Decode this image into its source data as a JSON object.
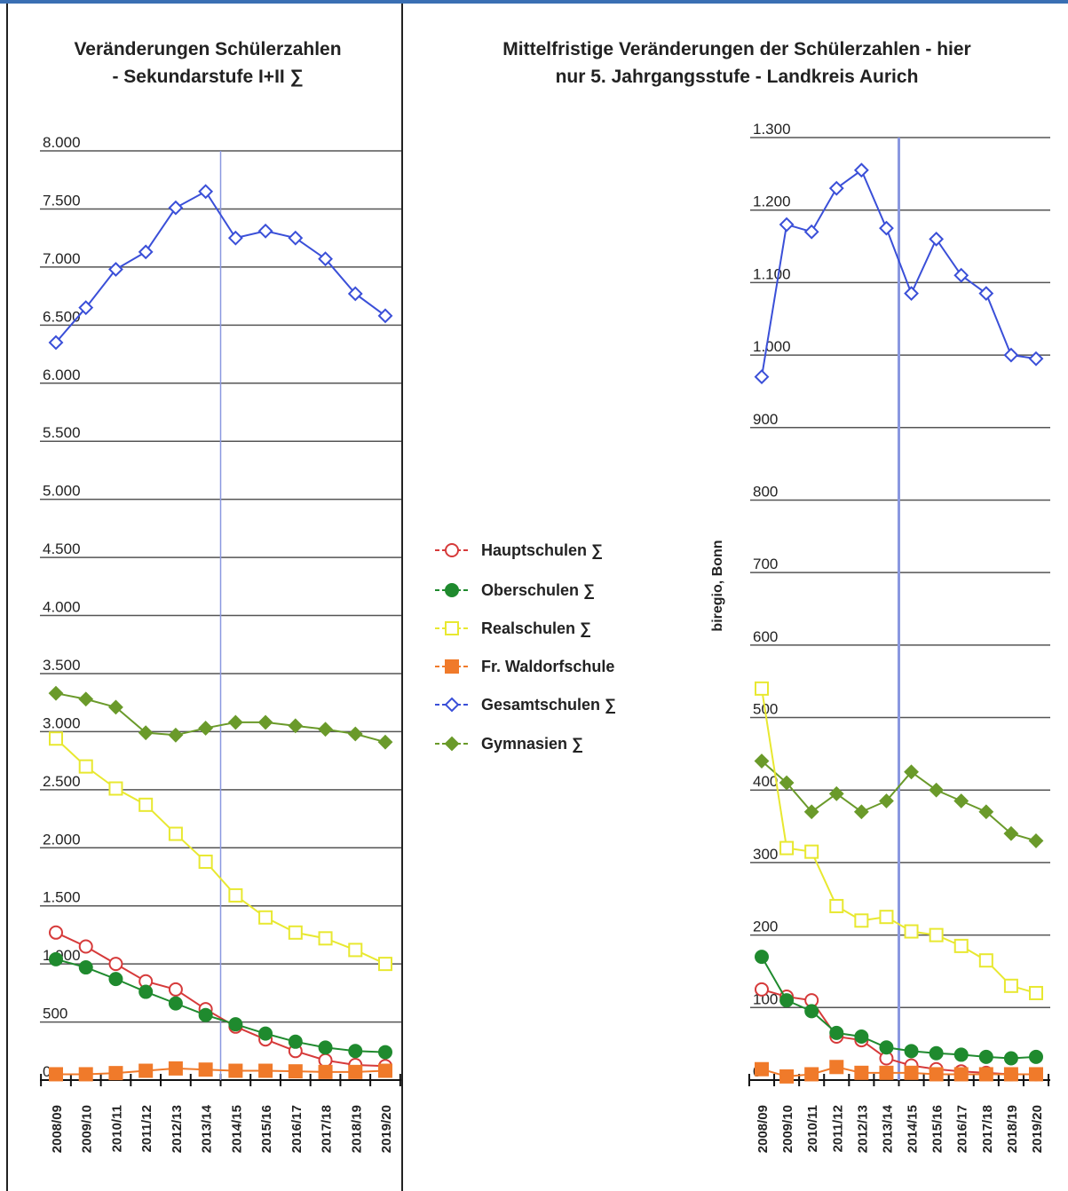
{
  "colors": {
    "hauptschulen": "#d63a3a",
    "oberschulen": "#1f8a2e",
    "realschulen": "#e8e830",
    "waldorf": "#f07a2a",
    "gesamtschulen": "#3a4fd8",
    "gymnasien": "#6a9a2a",
    "divider_line": "#8a98e0"
  },
  "legend": [
    {
      "key": "hauptschulen",
      "label": "Hauptschulen ∑",
      "marker": "circle-open"
    },
    {
      "key": "oberschulen",
      "label": "Oberschulen ∑",
      "marker": "circle-filled"
    },
    {
      "key": "realschulen",
      "label": "Realschulen ∑",
      "marker": "square-open"
    },
    {
      "key": "waldorf",
      "label": "Fr. Waldorfschule",
      "marker": "square-filled"
    },
    {
      "key": "gesamtschulen",
      "label": "Gesamtschulen ∑",
      "marker": "diamond-open"
    },
    {
      "key": "gymnasien",
      "label": "Gymnasien ∑",
      "marker": "diamond-filled"
    }
  ],
  "source_note": "biregio, Bonn",
  "chart_data": [
    {
      "type": "line",
      "title": "Veränderungen Schülerzahlen\n- Sekundarstufe I+II ∑",
      "x": [
        "2008/09",
        "2009/10",
        "2010/11",
        "2011/12",
        "2012/13",
        "2013/14",
        "2014/15",
        "2015/16",
        "2016/17",
        "2017/18",
        "2018/19",
        "2019/20"
      ],
      "ylim": [
        0,
        8000
      ],
      "yticks": [
        0,
        500,
        1000,
        1500,
        2000,
        2500,
        3000,
        3500,
        4000,
        4500,
        5000,
        5500,
        6000,
        6500,
        7000,
        7500,
        8000
      ],
      "ytick_labels": [
        "0",
        "500",
        "1.000",
        "1.500",
        "2.000",
        "2.500",
        "3.000",
        "3.500",
        "4.000",
        "4.500",
        "5.000",
        "5.500",
        "6.000",
        "6.500",
        "7.000",
        "7.500",
        "8.000"
      ],
      "vline_at": "2014/15",
      "grid": "horizontal",
      "series": [
        {
          "key": "gesamtschulen",
          "values": [
            6350,
            6650,
            6980,
            7130,
            7510,
            7650,
            7250,
            7310,
            7250,
            7070,
            6770,
            6580
          ]
        },
        {
          "key": "gymnasien",
          "values": [
            3330,
            3280,
            3210,
            2990,
            2970,
            3030,
            3080,
            3080,
            3050,
            3020,
            2980,
            2910
          ]
        },
        {
          "key": "realschulen",
          "values": [
            2940,
            2700,
            2510,
            2370,
            2120,
            1880,
            1590,
            1400,
            1270,
            1220,
            1120,
            1000
          ]
        },
        {
          "key": "hauptschulen",
          "values": [
            1270,
            1150,
            1000,
            850,
            780,
            610,
            460,
            350,
            250,
            170,
            130,
            120
          ]
        },
        {
          "key": "oberschulen",
          "values": [
            1040,
            970,
            870,
            760,
            660,
            560,
            480,
            400,
            330,
            280,
            250,
            240
          ]
        },
        {
          "key": "waldorf",
          "values": [
            50,
            50,
            60,
            80,
            100,
            90,
            80,
            80,
            75,
            70,
            70,
            80
          ]
        }
      ]
    },
    {
      "type": "line",
      "title": "Mittelfristige Veränderungen der Schülerzahlen - hier\nnur 5. Jahrgangsstufe - Landkreis Aurich",
      "x": [
        "2008/09",
        "2009/10",
        "2010/11",
        "2011/12",
        "2012/13",
        "2013/14",
        "2014/15",
        "2015/16",
        "2016/17",
        "2017/18",
        "2018/19",
        "2019/20"
      ],
      "ylim": [
        0,
        1300
      ],
      "yticks": [
        0,
        100,
        200,
        300,
        400,
        500,
        600,
        700,
        800,
        900,
        1000,
        1100,
        1200,
        1300
      ],
      "ytick_labels": [
        "0",
        "100",
        "200",
        "300",
        "400",
        "500",
        "600",
        "700",
        "800",
        "900",
        "1.000",
        "1.100",
        "1.200",
        "1.300"
      ],
      "vline_at": "2014/15",
      "grid": "horizontal",
      "series": [
        {
          "key": "gesamtschulen",
          "values": [
            970,
            1180,
            1170,
            1230,
            1255,
            1175,
            1085,
            1160,
            1110,
            1085,
            1000,
            995
          ]
        },
        {
          "key": "gymnasien",
          "values": [
            440,
            410,
            370,
            395,
            370,
            385,
            425,
            400,
            385,
            370,
            340,
            330
          ]
        },
        {
          "key": "realschulen",
          "values": [
            540,
            320,
            315,
            240,
            220,
            225,
            205,
            200,
            185,
            165,
            130,
            120
          ]
        },
        {
          "key": "hauptschulen",
          "values": [
            125,
            115,
            110,
            60,
            55,
            30,
            20,
            15,
            12,
            10,
            8,
            8
          ]
        },
        {
          "key": "oberschulen",
          "values": [
            170,
            110,
            95,
            65,
            60,
            45,
            40,
            37,
            35,
            32,
            30,
            32
          ]
        },
        {
          "key": "waldorf",
          "values": [
            15,
            5,
            8,
            18,
            10,
            10,
            10,
            8,
            8,
            8,
            8,
            8
          ]
        }
      ]
    }
  ]
}
